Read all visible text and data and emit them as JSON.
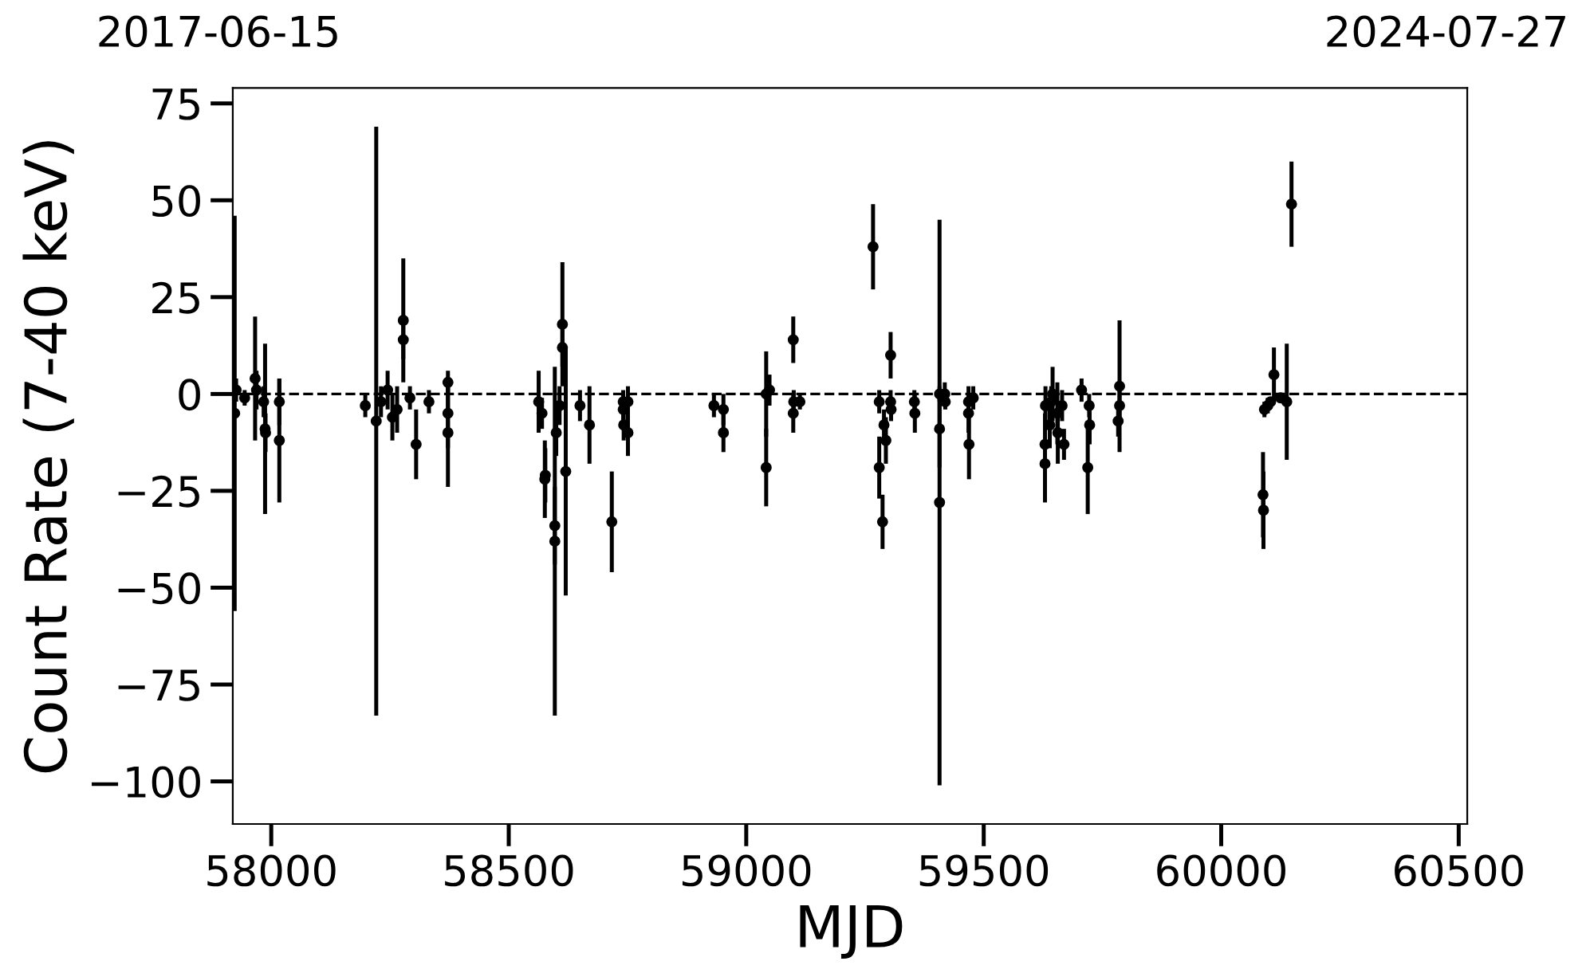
{
  "chart_data": {
    "type": "scatter",
    "xlabel": "MJD",
    "ylabel": "Count Rate (7-40 keV)",
    "xlim": [
      57919,
      60518
    ],
    "ylim": [
      -111,
      79
    ],
    "xticks": [
      58000,
      58500,
      59000,
      59500,
      60000,
      60500
    ],
    "yticks": [
      -100,
      -75,
      -50,
      -25,
      0,
      25,
      50,
      75
    ],
    "annotations": [
      "2017-06-15",
      "2024-07-27"
    ],
    "marker": "circle",
    "grid": false,
    "legend": false,
    "ref_lines": [
      {
        "axis": "y",
        "value": 0,
        "color": "#000000",
        "line_style": "dashed"
      }
    ],
    "series": [
      {
        "color": "#000000",
        "x": [
          57923,
          57926,
          57944,
          57966,
          57969,
          57984,
          57987,
          57988,
          58017,
          58017,
          58198,
          58221,
          58231,
          58245,
          58255,
          58265,
          58278,
          58278,
          58292,
          58305,
          58332,
          58372,
          58372,
          58372,
          58563,
          58570,
          58576,
          58577,
          58597,
          58597,
          58600,
          58607,
          58613,
          58613,
          58620,
          58650,
          58670,
          58717,
          58741,
          58741,
          58742,
          58751,
          58751,
          58932,
          58952,
          58952,
          59042,
          59042,
          59049,
          59099,
          59099,
          59100,
          59113,
          59267,
          59280,
          59280,
          59287,
          59290,
          59294,
          59304,
          59304,
          59305,
          59354,
          59355,
          59407,
          59407,
          59407,
          59418,
          59419,
          59468,
          59468,
          59469,
          59478,
          59629,
          59629,
          59630,
          59639,
          59642,
          59645,
          59655,
          59656,
          59665,
          59669,
          59706,
          59719,
          59722,
          59723,
          59783,
          59786,
          59786,
          60088,
          60089,
          60091,
          60098,
          60104,
          60111,
          60125,
          60138,
          60148
        ],
        "values": [
          -5,
          1,
          -1,
          4,
          1,
          -2,
          -9,
          -10,
          -2,
          -12,
          -3,
          -7,
          -2,
          1,
          -6,
          -4,
          19,
          14,
          -1,
          -13,
          -2,
          3,
          -5,
          -10,
          -2,
          -5,
          -22,
          -21,
          -38,
          -34,
          -10,
          -3,
          18,
          12,
          -20,
          -3,
          -8,
          -33,
          -2,
          -4,
          -8,
          -2,
          -10,
          -3,
          -4,
          -10,
          0,
          -19,
          1,
          14,
          -5,
          -2,
          -2,
          38,
          -2,
          -19,
          -33,
          -8,
          -12,
          10,
          -2,
          -4,
          -2,
          -5,
          -28,
          -9,
          0,
          0,
          -2,
          -2,
          -5,
          -13,
          -1,
          -13,
          -18,
          -3,
          -8,
          -2,
          0,
          -5,
          -10,
          -3,
          -13,
          1,
          -19,
          -3,
          -8,
          -7,
          2,
          -3,
          -26,
          -30,
          -4,
          -3,
          -2,
          5,
          -1,
          -2,
          49
        ],
        "errors": [
          51,
          3,
          2,
          16,
          5,
          4,
          22,
          5,
          6,
          16,
          3,
          76,
          4,
          5,
          6,
          6,
          16,
          5,
          3,
          9,
          3,
          3,
          9,
          14,
          8,
          4,
          10,
          7,
          45,
          10,
          6,
          5,
          16,
          5,
          32,
          4,
          10,
          13,
          3,
          4,
          4,
          4,
          6,
          3,
          4,
          5,
          11,
          10,
          4,
          6,
          5,
          3,
          2,
          11,
          3,
          8,
          7,
          4,
          6,
          6,
          3,
          3,
          3,
          5,
          73,
          10,
          2,
          3,
          2,
          4,
          5,
          9,
          3,
          8,
          10,
          5,
          6,
          4,
          7,
          8,
          8,
          4,
          4,
          3,
          12,
          3,
          5,
          4,
          17,
          4,
          11,
          10,
          2,
          2,
          1,
          7,
          1,
          15,
          11
        ]
      }
    ]
  }
}
